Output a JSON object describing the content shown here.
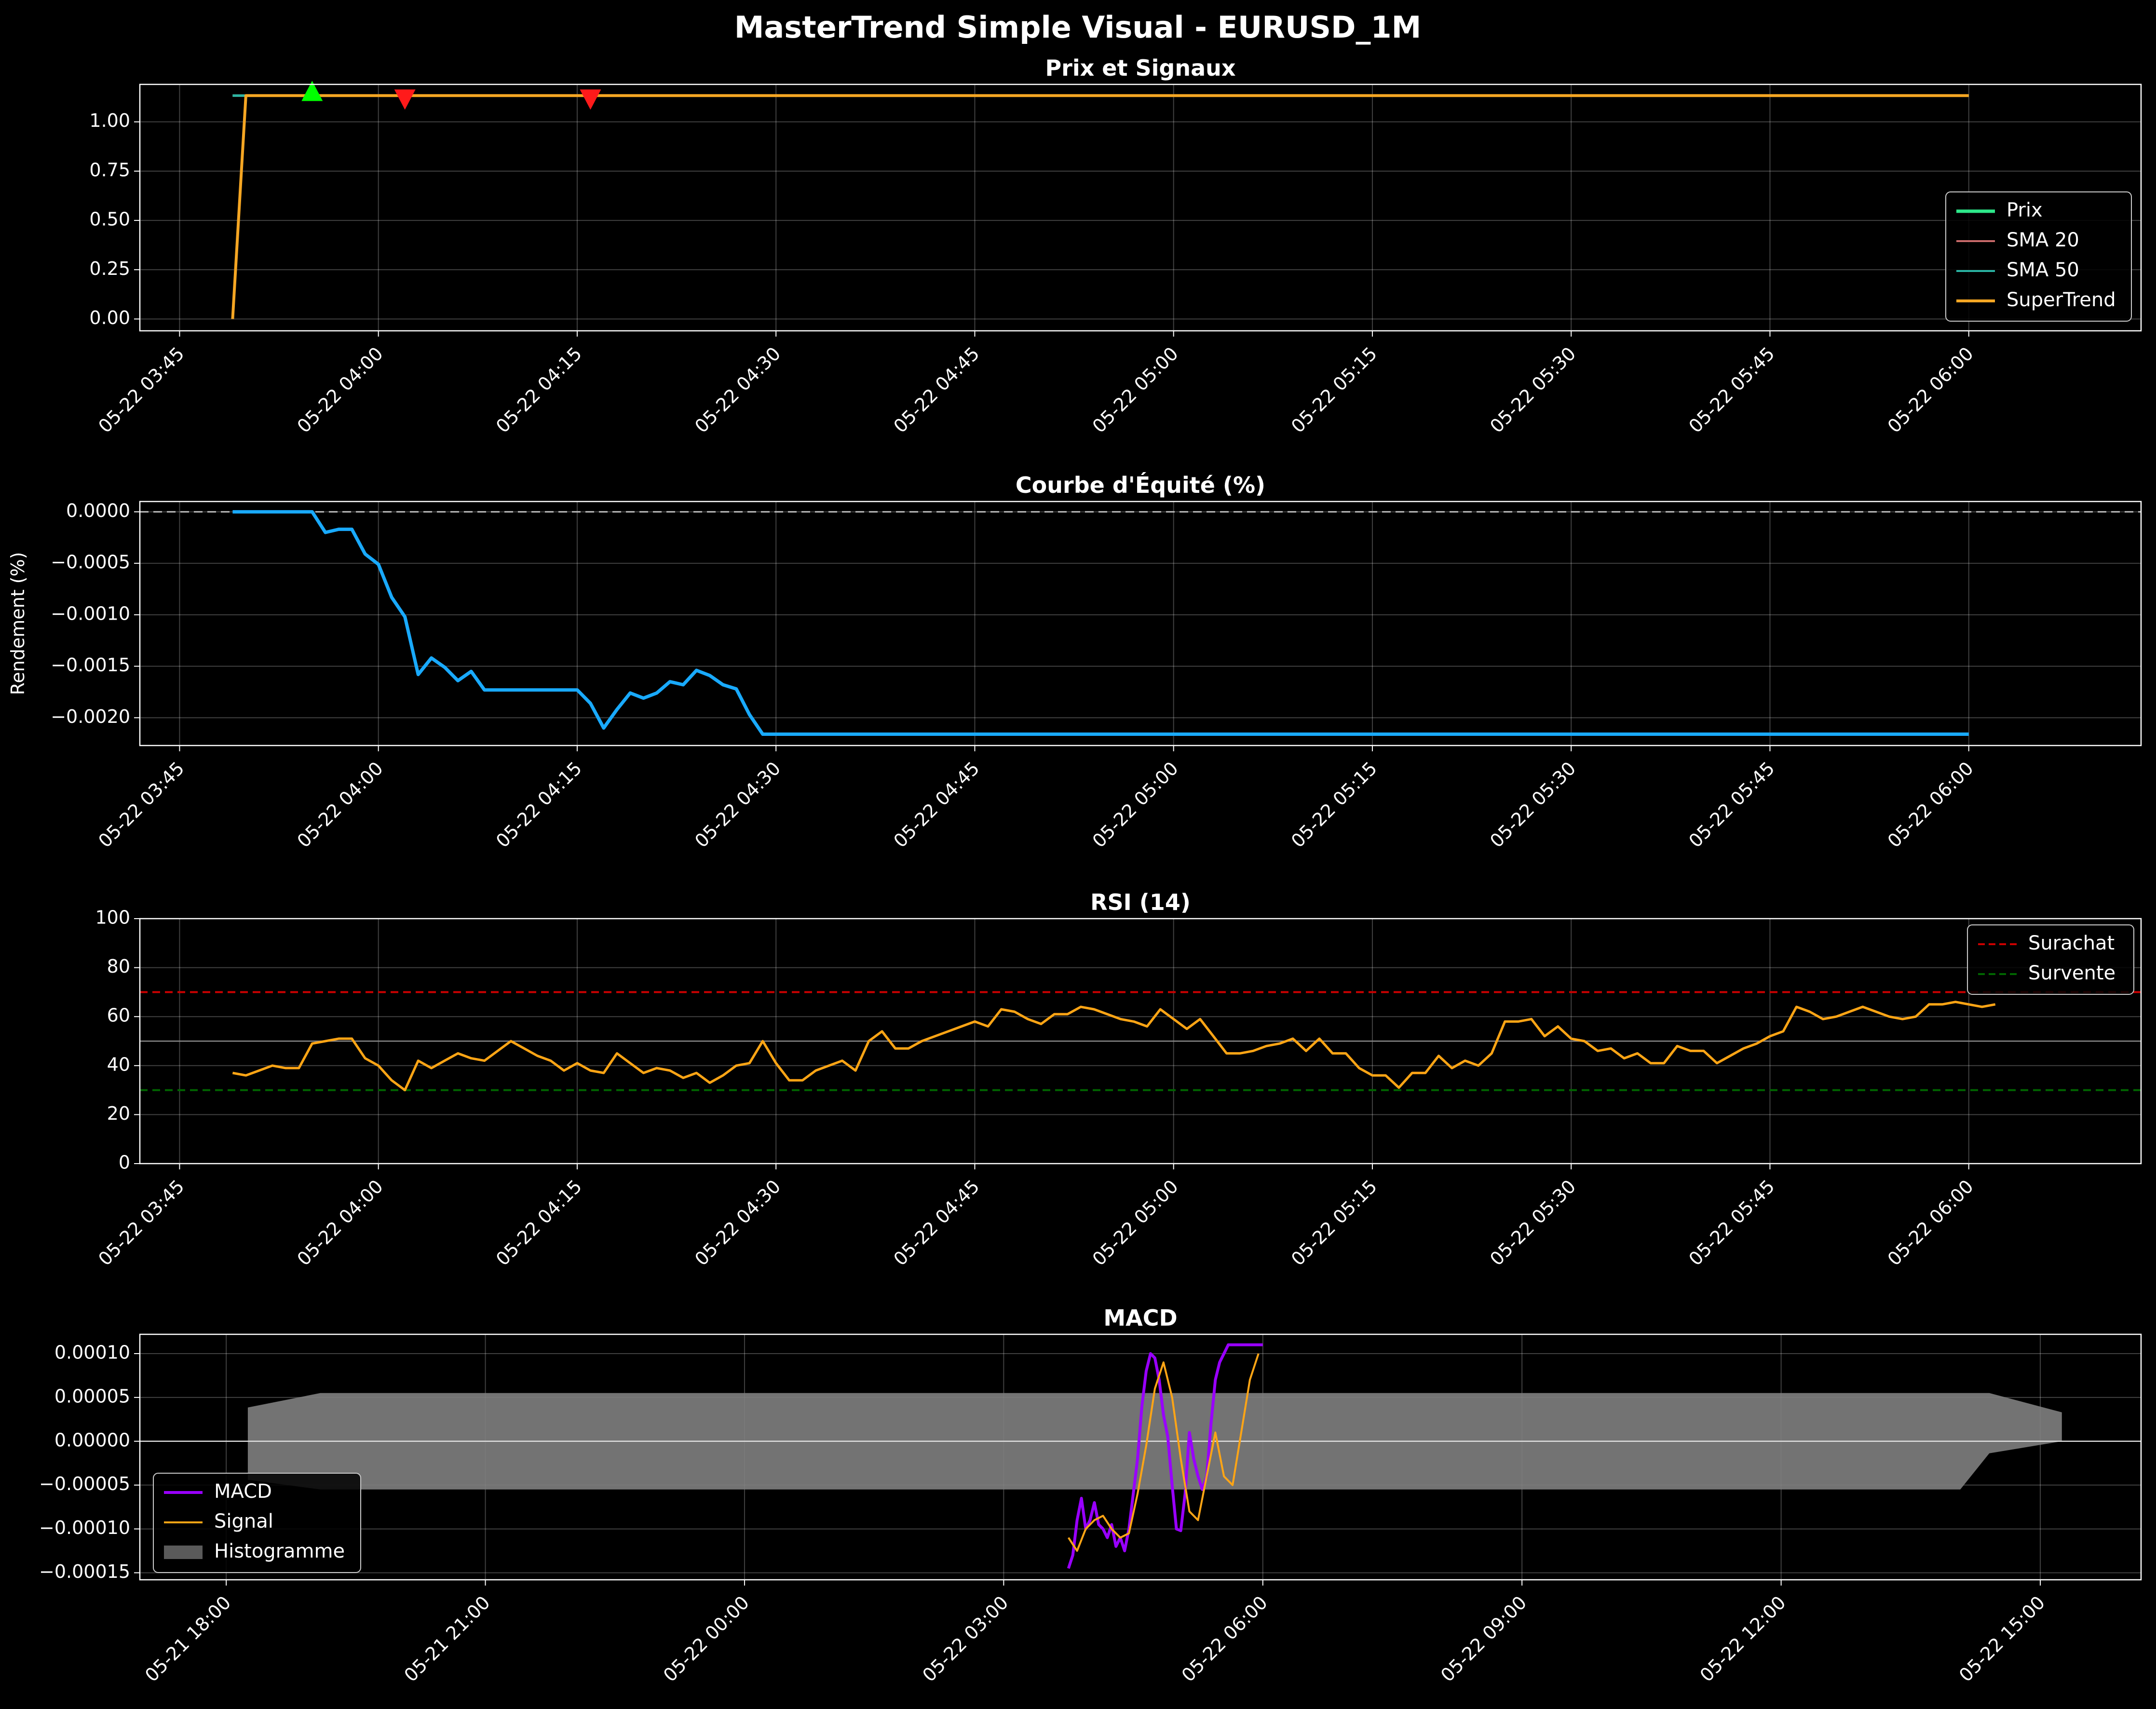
{
  "figure_title": "MasterTrend Simple Visual - EURUSD_1M",
  "colors": {
    "background": "#000000",
    "price": "#2ee88a",
    "sma20": "#c96a6a",
    "sma50": "#2ab5a4",
    "supertrend": "#f5a623",
    "buy_signal": "#00ff00",
    "sell_signal": "#ff1a1a",
    "equity": "#19aaff",
    "rsi": "#ffa515",
    "overbought": "#cc0000",
    "oversold": "#006600",
    "macd": "#9900ff",
    "signal": "#ffa515",
    "histogram": "#808080"
  },
  "chart_data": [
    {
      "id": "price",
      "type": "line",
      "title": "Prix et Signaux",
      "xlabel": "",
      "ylabel": "",
      "x_unit": "time",
      "xlim": [
        "2025-05-22 03:42",
        "2025-05-22 06:13"
      ],
      "x_ticks": [
        "05-22 03:45",
        "05-22 04:00",
        "05-22 04:15",
        "05-22 04:30",
        "05-22 04:45",
        "05-22 05:00",
        "05-22 05:15",
        "05-22 05:30",
        "05-22 05:45",
        "05-22 06:00"
      ],
      "ylim": [
        -0.06,
        1.19
      ],
      "y_ticks": [
        "0.00",
        "0.25",
        "0.50",
        "0.75",
        "1.00"
      ],
      "grid": true,
      "legend_position": "center-right",
      "series": [
        {
          "name": "Prix",
          "color_key": "price",
          "x": [
            "03:49",
            "06:00"
          ],
          "values": [
            1.133,
            1.133
          ]
        },
        {
          "name": "SMA 20",
          "color_key": "sma20",
          "x": [
            "03:49",
            "06:00"
          ],
          "values": [
            1.133,
            1.133
          ]
        },
        {
          "name": "SMA 50",
          "color_key": "sma50",
          "x": [
            "03:49",
            "06:00"
          ],
          "values": [
            1.133,
            1.133
          ]
        },
        {
          "name": "SuperTrend",
          "color_key": "supertrend",
          "x": [
            "03:49",
            "03:50",
            "06:00"
          ],
          "values": [
            0.0,
            1.133,
            1.133
          ]
        }
      ],
      "signals": [
        {
          "kind": "buy",
          "x": "03:55",
          "value": 1.135
        },
        {
          "kind": "sell",
          "x": "04:02",
          "value": 1.135
        },
        {
          "kind": "sell",
          "x": "04:16",
          "value": 1.135
        }
      ]
    },
    {
      "id": "equity",
      "type": "line",
      "title": "Courbe d'Équité (%)",
      "xlabel": "",
      "ylabel": "Rendement (%)",
      "xlim": [
        "2025-05-22 03:42",
        "2025-05-22 06:13"
      ],
      "x_ticks": [
        "05-22 03:45",
        "05-22 04:00",
        "05-22 04:15",
        "05-22 04:30",
        "05-22 04:45",
        "05-22 05:00",
        "05-22 05:15",
        "05-22 05:30",
        "05-22 05:45",
        "05-22 06:00"
      ],
      "ylim": [
        -0.00227,
        0.0001
      ],
      "y_ticks": [
        "−0.0020",
        "−0.0015",
        "−0.0010",
        "−0.0005",
        "0.0000"
      ],
      "grid": true,
      "reference_line": 0,
      "series": [
        {
          "name": "",
          "color_key": "equity",
          "x": [
            "03:49",
            "03:55",
            "03:56",
            "03:57",
            "03:58",
            "03:59",
            "04:00",
            "04:01",
            "04:02",
            "04:03",
            "04:04",
            "04:05",
            "04:06",
            "04:07",
            "04:08",
            "04:15",
            "04:16",
            "04:17",
            "04:18",
            "04:19",
            "04:20",
            "04:21",
            "04:22",
            "04:23",
            "04:24",
            "04:25",
            "04:26",
            "04:27",
            "04:28",
            "04:29",
            "06:00"
          ],
          "values": [
            0,
            0,
            -0.0002,
            -0.00017,
            -0.00017,
            -0.00041,
            -0.00051,
            -0.00083,
            -0.00102,
            -0.00158,
            -0.00142,
            -0.00151,
            -0.00164,
            -0.00155,
            -0.00173,
            -0.00173,
            -0.00186,
            -0.0021,
            -0.00192,
            -0.00176,
            -0.00181,
            -0.00176,
            -0.00165,
            -0.00168,
            -0.00154,
            -0.00159,
            -0.00168,
            -0.00172,
            -0.00197,
            -0.00216,
            -0.00216
          ]
        }
      ]
    },
    {
      "id": "rsi",
      "type": "line",
      "title": "RSI (14)",
      "xlabel": "",
      "ylabel": "",
      "xlim": [
        "2025-05-22 03:42",
        "2025-05-22 06:13"
      ],
      "x_ticks": [
        "05-22 03:45",
        "05-22 04:00",
        "05-22 04:15",
        "05-22 04:30",
        "05-22 04:45",
        "05-22 05:00",
        "05-22 05:15",
        "05-22 05:30",
        "05-22 05:45",
        "05-22 06:00"
      ],
      "ylim": [
        0,
        100
      ],
      "y_ticks": [
        "0",
        "20",
        "40",
        "60",
        "80",
        "100"
      ],
      "grid": true,
      "legend_position": "top-right",
      "thresholds": [
        {
          "name": "Surachat",
          "value": 70,
          "color_key": "overbought"
        },
        {
          "name": "Survente",
          "value": 30,
          "color_key": "oversold"
        }
      ],
      "midline": 50,
      "series": [
        {
          "name": "",
          "color_key": "rsi",
          "x_start": "03:49",
          "x_step_minutes": 1,
          "values": [
            37,
            36,
            38,
            40,
            39,
            39,
            49,
            50,
            51,
            51,
            43,
            40,
            34,
            30,
            42,
            39,
            42,
            45,
            43,
            42,
            46,
            50,
            47,
            44,
            42,
            38,
            41,
            38,
            37,
            45,
            41,
            37,
            39,
            38,
            35,
            37,
            33,
            36,
            40,
            41,
            50,
            41,
            34,
            34,
            38,
            40,
            42,
            38,
            50,
            54,
            47,
            47,
            50,
            52,
            54,
            56,
            58,
            56,
            63,
            62,
            59,
            57,
            61,
            61,
            64,
            63,
            61,
            59,
            58,
            56,
            63,
            59,
            55,
            59,
            52,
            45,
            45,
            46,
            48,
            49,
            51,
            46,
            51,
            45,
            45,
            39,
            36,
            36,
            31,
            37,
            37,
            44,
            39,
            42,
            40,
            45,
            58,
            58,
            59,
            52,
            56,
            51,
            50,
            46,
            47,
            43,
            45,
            41,
            41,
            48,
            46,
            46,
            41,
            44,
            47,
            49,
            52,
            54,
            64,
            62,
            59,
            60,
            62,
            64,
            62,
            60,
            59,
            60,
            65,
            65,
            66,
            65,
            64,
            65
          ]
        }
      ]
    },
    {
      "id": "macd",
      "type": "line",
      "title": "MACD",
      "xlabel": "",
      "ylabel": "",
      "xlim": [
        "2025-05-21 17:00",
        "2025-05-22 16:10"
      ],
      "x_ticks": [
        "05-21 18:00",
        "05-21 21:00",
        "05-22 00:00",
        "05-22 03:00",
        "05-22 06:00",
        "05-22 09:00",
        "05-22 12:00",
        "05-22 15:00"
      ],
      "ylim": [
        -0.000158,
        0.000122
      ],
      "y_ticks": [
        "−0.00015",
        "−0.00010",
        "−0.00005",
        "0.00000",
        "0.00005",
        "0.00010"
      ],
      "grid": true,
      "legend_position": "bottom-left",
      "histogram": {
        "name": "Histogramme",
        "color_key": "histogram",
        "x_start": "2025-05-21 18:15",
        "x_end": "2025-05-22 15:15",
        "upper_value": 5.5e-05,
        "lower_value": -5.5e-05
      },
      "series": [
        {
          "name": "MACD",
          "color_key": "macd",
          "x": [
            "03:45",
            "03:48",
            "03:51",
            "03:54",
            "03:57",
            "04:00",
            "04:03",
            "04:06",
            "04:09",
            "04:12",
            "04:15",
            "04:18",
            "04:21",
            "04:24",
            "04:27",
            "04:30",
            "04:33",
            "04:36",
            "04:39",
            "04:42",
            "04:45",
            "04:48",
            "04:51",
            "04:54",
            "04:57",
            "05:00",
            "05:03",
            "05:06",
            "05:09",
            "05:12",
            "05:15",
            "05:18",
            "05:21",
            "05:24",
            "05:27",
            "05:30",
            "05:33",
            "05:36",
            "05:39",
            "05:42",
            "05:45",
            "05:48",
            "05:51",
            "05:54",
            "05:57",
            "06:00"
          ],
          "values": [
            -0.000145,
            -0.00013,
            -9e-05,
            -6.5e-05,
            -0.0001,
            -9e-05,
            -7e-05,
            -9.5e-05,
            -0.0001,
            -0.00011,
            -9.5e-05,
            -0.00012,
            -0.00011,
            -0.000125,
            -0.0001,
            -6e-05,
            -2e-05,
            4e-05,
            8e-05,
            0.0001,
            9.5e-05,
            7e-05,
            3e-05,
            5e-06,
            -5e-05,
            -0.0001,
            -0.000102,
            -6e-05,
            1e-05,
            -2e-05,
            -4e-05,
            -5.5e-05,
            -4e-05,
            2e-05,
            7e-05,
            9e-05,
            0.0001,
            0.00011,
            0.00011,
            0.00011,
            0.00011,
            0.00011,
            0.00011,
            0.00011,
            0.00011,
            0.00011
          ]
        },
        {
          "name": "Signal",
          "color_key": "signal",
          "x": [
            "03:45",
            "03:51",
            "03:57",
            "04:03",
            "04:09",
            "04:15",
            "04:21",
            "04:27",
            "04:33",
            "04:39",
            "04:45",
            "04:51",
            "04:57",
            "05:03",
            "05:09",
            "05:15",
            "05:21",
            "05:27",
            "05:33",
            "05:39",
            "05:45",
            "05:51",
            "05:57"
          ],
          "values": [
            -0.00011,
            -0.000125,
            -0.0001,
            -9e-05,
            -8.5e-05,
            -0.0001,
            -0.00011,
            -0.000105,
            -6e-05,
            -5e-06,
            6e-05,
            9e-05,
            5e-05,
            -2e-05,
            -8e-05,
            -9e-05,
            -4e-05,
            1e-05,
            -4e-05,
            -5e-05,
            1e-05,
            7e-05,
            0.0001
          ]
        }
      ]
    }
  ],
  "legends": {
    "price": [
      "Prix",
      "SMA 20",
      "SMA 50",
      "SuperTrend"
    ],
    "rsi": [
      "Surachat",
      "Survente"
    ],
    "macd": [
      "MACD",
      "Signal",
      "Histogramme"
    ]
  }
}
